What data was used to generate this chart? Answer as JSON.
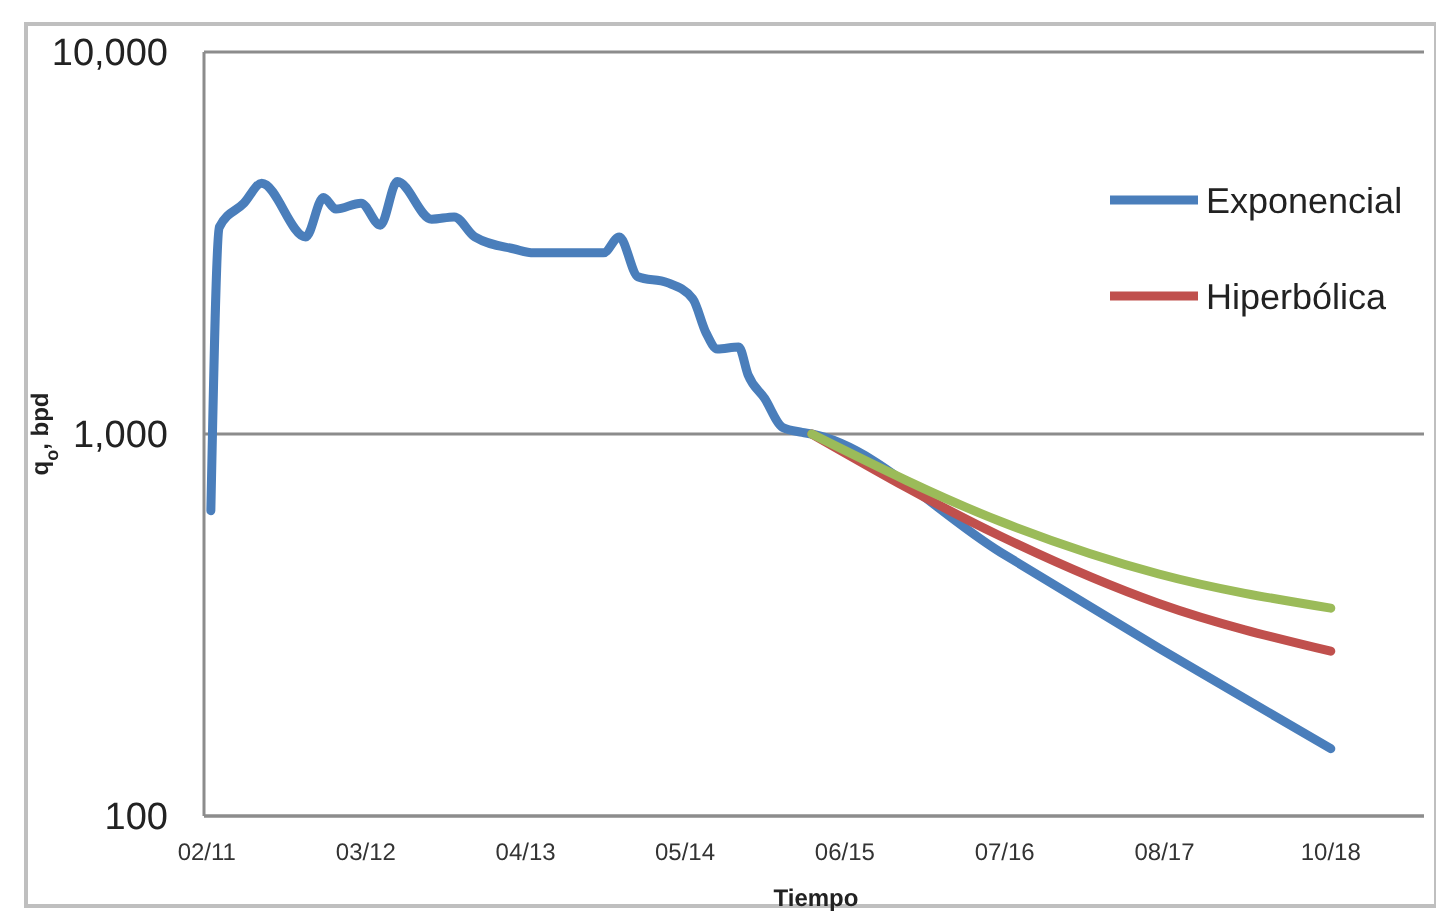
{
  "chart_data": {
    "type": "line",
    "xlabel": "Tiempo",
    "ylabel": "q$_{o}$, bpd",
    "log": "y",
    "grid": "y",
    "legend": "top right",
    "xlim": [
      "2011-02-08",
      "2019-05-20"
    ],
    "ylim": [
      100,
      10000
    ],
    "yticks": [
      {
        "value": 100,
        "label": "100"
      },
      {
        "value": 1000,
        "label": "1,000"
      },
      {
        "value": 10000,
        "label": "10,000"
      }
    ],
    "xticks": [
      {
        "value": "2011-02-15",
        "label": "02/11"
      },
      {
        "value": "2012-03-15",
        "label": "03/12"
      },
      {
        "value": "2013-04-15",
        "label": "04/13"
      },
      {
        "value": "2014-05-15",
        "label": "05/14"
      },
      {
        "value": "2015-06-15",
        "label": "06/15"
      },
      {
        "value": "2016-07-15",
        "label": "07/16"
      },
      {
        "value": "2017-08-15",
        "label": "08/17"
      },
      {
        "value": "2018-10-01",
        "label": "10/18"
      }
    ],
    "series": [
      {
        "name": "Exponencial",
        "color": "#4a7ebb",
        "x": [
          "2011-02-25",
          "2011-03-18",
          "2011-05-18",
          "2011-07-01",
          "2011-10-18",
          "2011-12-01",
          "2012-01-01",
          "2012-03-03",
          "2012-04-20",
          "2012-06-01",
          "2012-08-25",
          "2012-10-20",
          "2012-12-10",
          "2013-03-18",
          "2013-05-05",
          "2013-10-25",
          "2013-12-03",
          "2014-01-18",
          "2014-04-01",
          "2014-06-03",
          "2014-07-06",
          "2014-08-03",
          "2014-09-25",
          "2014-10-18",
          "2014-11-28",
          "2015-01-12",
          "2015-03-01",
          "2015-03-25",
          "2016-07-05",
          "2017-08-01",
          "2018-10-01"
        ],
        "values": [
          630,
          3480,
          4020,
          4530,
          3280,
          4160,
          3880,
          4020,
          3520,
          4580,
          3650,
          3700,
          3280,
          3050,
          2980,
          2980,
          3280,
          2580,
          2490,
          2260,
          1840,
          1670,
          1690,
          1430,
          1240,
          1040,
          1010,
          1000,
          490,
          275,
          150
        ]
      },
      {
        "name": "Hiperbólica",
        "color": "#c0504d",
        "x": [
          "2015-03-25",
          "2016-07-05",
          "2017-08-01",
          "2018-10-01"
        ],
        "values": [
          1000,
          540,
          360,
          270
        ]
      },
      {
        "color": "#9bbb59",
        "x": [
          "2015-03-25",
          "2016-07-05",
          "2017-08-01",
          "2018-10-01"
        ],
        "values": [
          1000,
          590,
          430,
          350
        ]
      }
    ]
  }
}
